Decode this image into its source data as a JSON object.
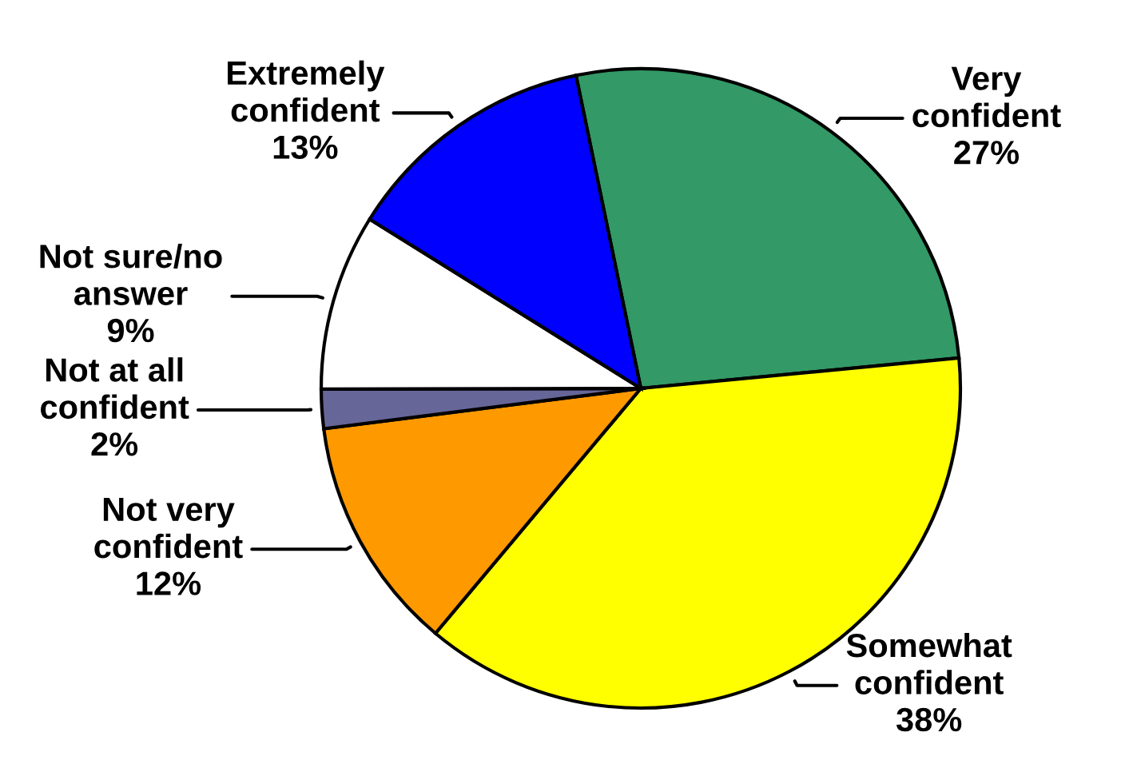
{
  "chart_data": {
    "type": "pie",
    "categories": [
      "Very\nconfident",
      "Somewhat\nconfident",
      "Not very\nconfident",
      "Not at all\nconfident",
      "Not sure/no\nanswer",
      "Extremely\nconfident"
    ],
    "values": [
      27,
      38,
      12,
      2,
      9,
      13
    ],
    "colors": [
      "#339966",
      "#ffff00",
      "#ff9900",
      "#666699",
      "#ffffff",
      "#0000ff"
    ],
    "value_labels": [
      "27%",
      "38%",
      "12%",
      "2%",
      "9%",
      "13%"
    ]
  }
}
